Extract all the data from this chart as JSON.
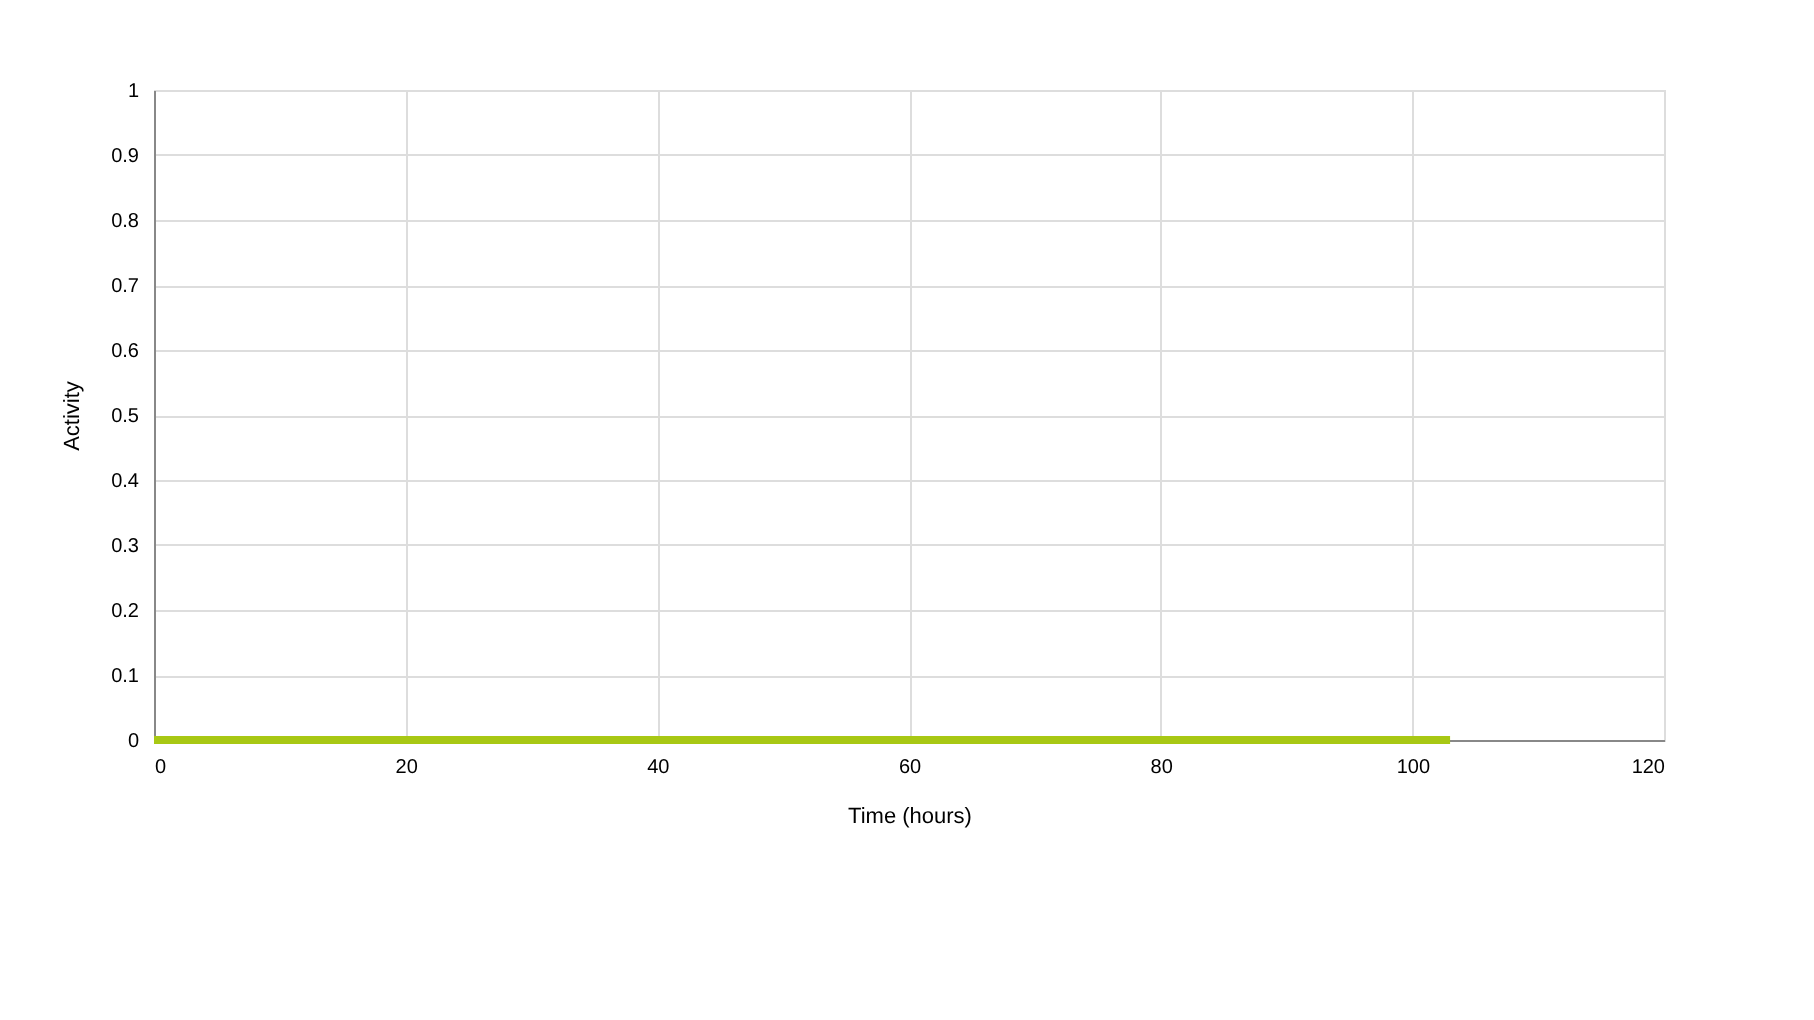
{
  "chart_data": {
    "type": "line",
    "xlabel": "Time (hours)",
    "ylabel": "Activity",
    "x": [
      0,
      103
    ],
    "series": [
      {
        "color": "#a8c814",
        "values": [
          0,
          0
        ]
      }
    ],
    "xlim": [
      0,
      120
    ],
    "xticks": [
      0,
      20,
      40,
      60,
      80,
      100,
      120
    ],
    "ylim": [
      0,
      1
    ],
    "yticks": [
      0,
      0.1,
      0.2,
      0.3,
      0.4,
      0.5,
      0.6,
      0.7,
      0.8,
      0.9,
      1
    ],
    "grid": true,
    "marker": "none",
    "line_style": "solid"
  }
}
